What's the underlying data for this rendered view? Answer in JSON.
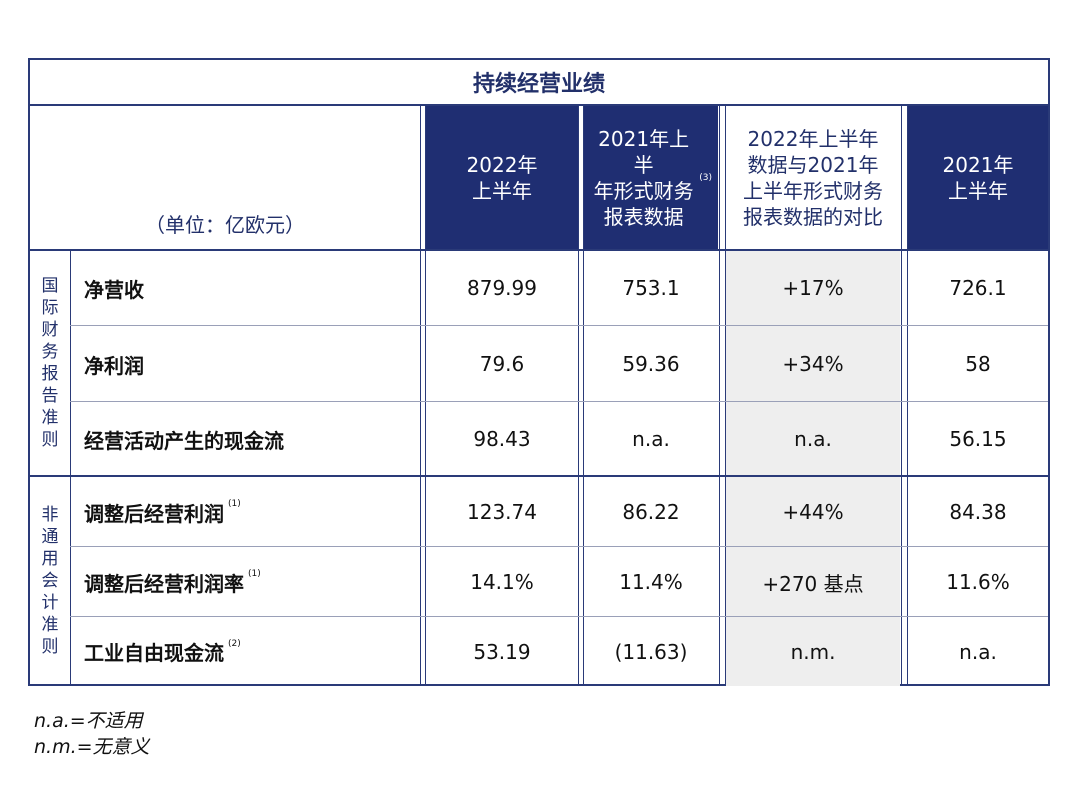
{
  "title": "持续经营业绩",
  "unit_label": "（单位：亿欧元）",
  "columns": [
    {
      "label": "2022年\n上半年",
      "note": ""
    },
    {
      "label": "2021年上半\n年形式财务\n报表数据",
      "note": "(3)"
    },
    {
      "label": "2022年上半年\n数据与2021年\n上半年形式财务\n报表数据的对比",
      "note": ""
    },
    {
      "label": "2021年\n上半年",
      "note": ""
    }
  ],
  "groups": [
    {
      "label": "国际财务报告准则",
      "rows": [
        {
          "label": "净营收",
          "note": "",
          "values": [
            "879.99",
            "753.1",
            "+17%",
            "726.1"
          ]
        },
        {
          "label": "净利润",
          "note": "",
          "values": [
            "79.6",
            "59.36",
            "+34%",
            "58"
          ]
        },
        {
          "label": "经营活动产生的现金流",
          "note": "",
          "values": [
            "98.43",
            "n.a.",
            "n.a.",
            "56.15"
          ]
        }
      ]
    },
    {
      "label": "非通用会计准则",
      "rows": [
        {
          "label": "调整后经营利润",
          "note": "(1)",
          "values": [
            "123.74",
            "86.22",
            "+44%",
            "84.38"
          ]
        },
        {
          "label": "调整后经营利润率",
          "note": "(1)",
          "values": [
            "14.1%",
            "11.4%",
            "+270 基点",
            "11.6%"
          ]
        },
        {
          "label": "工业自由现金流",
          "note": "(2)",
          "values": [
            "53.19",
            "(11.63)",
            "n.m.",
            "n.a."
          ]
        }
      ]
    }
  ],
  "notes": [
    "n.a.=不适用",
    "n.m.=无意义"
  ],
  "colors": {
    "header_bg": "#1f2e72",
    "border": "#2a3a78",
    "compare_bg": "#eeeeee"
  }
}
